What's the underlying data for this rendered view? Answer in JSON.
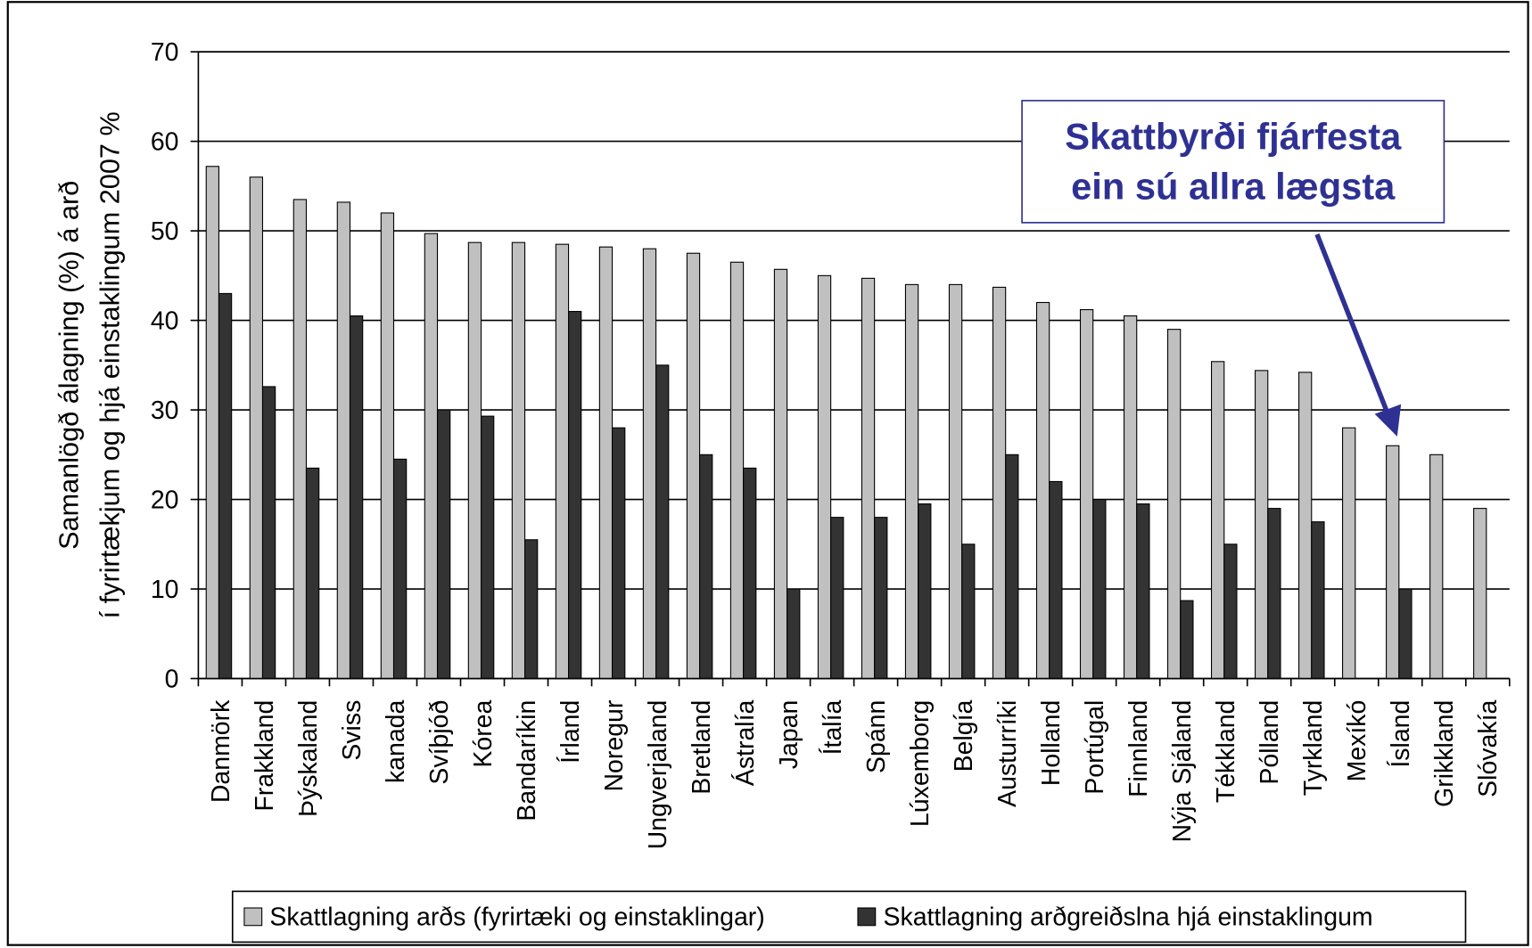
{
  "chart_data": {
    "type": "bar",
    "ylabel": [
      "Samanlögð álagning (%) á arð",
      "í fyrirtækjum og hjá einstaklingum 2007 %"
    ],
    "categories": [
      "Danmörk",
      "Frakkland",
      "Þýskaland",
      "Sviss",
      "kanada",
      "Svíþjóð",
      "Kórea",
      "Bandaríkin",
      "Írland",
      "Noregur",
      "Ungverjaland",
      "Bretland",
      "Ástralía",
      "Japan",
      "Ítalía",
      "Spánn",
      "Lúxemborg",
      "Belgía",
      "Austurríki",
      "Holland",
      "Portúgal",
      "Finnland",
      "Nýja Sjáland",
      "Tékkland",
      "Pólland",
      "Tyrkland",
      "Mexíkó",
      "Ísland",
      "Grikkland",
      "Slóvakía"
    ],
    "series": [
      {
        "name": "Skattlagning arðs (fyrirtæki og einstaklingar)",
        "color": "#c0c0c0",
        "values": [
          57.2,
          56,
          53.5,
          53.2,
          52,
          49.7,
          48.7,
          48.7,
          48.5,
          48.2,
          48,
          47.5,
          46.5,
          45.7,
          45,
          44.7,
          44,
          44,
          43.7,
          42,
          41.2,
          40.5,
          39,
          35.4,
          34.4,
          34.2,
          28,
          26,
          25,
          19
        ]
      },
      {
        "name": "Skattlagning arðgreiðslna hjá einstaklingum",
        "color": "#333333",
        "values": [
          43,
          32.6,
          23.5,
          40.5,
          24.5,
          30,
          29.3,
          15.5,
          41,
          28,
          35,
          25,
          23.5,
          10,
          18,
          18,
          19.5,
          15,
          25,
          22,
          20,
          19.5,
          8.7,
          15,
          19,
          17.5,
          null,
          10,
          null,
          null
        ]
      }
    ],
    "ylim": [
      0,
      70
    ],
    "yticks": [
      0,
      10,
      20,
      30,
      40,
      50,
      60,
      70
    ],
    "grid": true,
    "annotation": [
      "Skattbyrði fjárfesta",
      "ein sú allra lægsta"
    ],
    "legend": "bottom"
  }
}
